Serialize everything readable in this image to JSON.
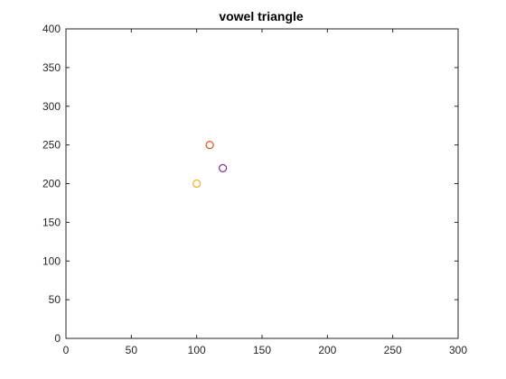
{
  "chart_data": {
    "type": "scatter",
    "title": "vowel triangle",
    "xlabel": "",
    "ylabel": "",
    "xlim": [
      0,
      300
    ],
    "ylim": [
      0,
      400
    ],
    "xticks": [
      0,
      50,
      100,
      150,
      200,
      250,
      300
    ],
    "yticks": [
      0,
      50,
      100,
      150,
      200,
      250,
      300,
      350,
      400
    ],
    "grid": false,
    "marker": "circle-open",
    "points": [
      {
        "x": 110,
        "y": 250,
        "color": "#d95319"
      },
      {
        "x": 100,
        "y": 200,
        "color": "#edb120"
      },
      {
        "x": 120,
        "y": 220,
        "color": "#7e2f8e"
      }
    ]
  }
}
